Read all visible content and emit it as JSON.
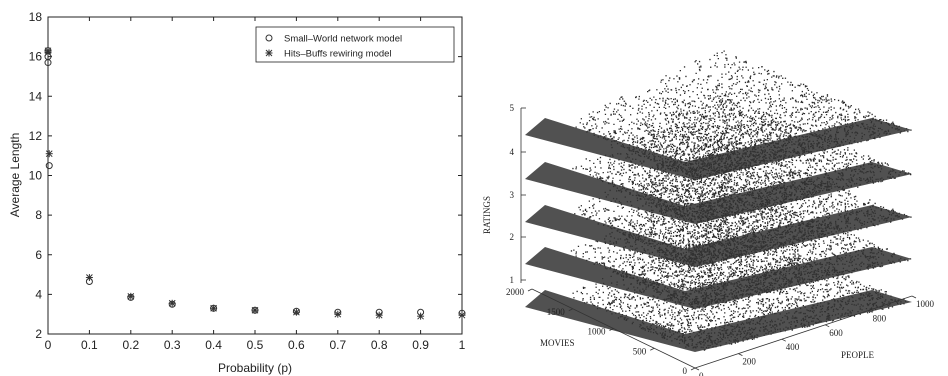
{
  "chart_data": [
    {
      "type": "scatter",
      "title": "",
      "xlabel": "Probability (p)",
      "ylabel": "Average Length",
      "xlim": [
        0,
        1
      ],
      "ylim": [
        2,
        18
      ],
      "xticks": [
        "0",
        "0.1",
        "0.2",
        "0.3",
        "0.4",
        "0.5",
        "0.6",
        "0.7",
        "0.8",
        "0.9",
        "1"
      ],
      "yticks": [
        "2",
        "4",
        "6",
        "8",
        "10",
        "12",
        "14",
        "16",
        "18"
      ],
      "legend_position": "top-right",
      "grid": false,
      "series": [
        {
          "name": "Small–World network model",
          "marker": "circle",
          "points": [
            [
              0,
              15.7
            ],
            [
              0,
              16.0
            ],
            [
              0,
              16.3
            ],
            [
              0.003,
              10.5
            ],
            [
              0.1,
              4.65
            ],
            [
              0.2,
              3.85
            ],
            [
              0.3,
              3.5
            ],
            [
              0.4,
              3.3
            ],
            [
              0.5,
              3.2
            ],
            [
              0.6,
              3.15
            ],
            [
              0.7,
              3.1
            ],
            [
              0.8,
              3.1
            ],
            [
              0.9,
              3.1
            ],
            [
              1.0,
              3.05
            ]
          ]
        },
        {
          "name": "Hits–Buffs rewiring model",
          "marker": "star",
          "points": [
            [
              0,
              16.2
            ],
            [
              0,
              16.3
            ],
            [
              0.003,
              11.1
            ],
            [
              0.1,
              4.85
            ],
            [
              0.2,
              3.9
            ],
            [
              0.3,
              3.55
            ],
            [
              0.4,
              3.3
            ],
            [
              0.5,
              3.2
            ],
            [
              0.6,
              3.1
            ],
            [
              0.7,
              3.0
            ],
            [
              0.8,
              2.95
            ],
            [
              0.9,
              2.9
            ],
            [
              1.0,
              2.95
            ]
          ]
        }
      ]
    },
    {
      "type": "scatter3d",
      "title": "",
      "xlabel": "PEOPLE",
      "ylabel": "MOVIES",
      "zlabel": "RATINGS",
      "xlim": [
        0,
        1000
      ],
      "ylim": [
        0,
        2000
      ],
      "zlim": [
        1,
        5
      ],
      "xticks": [
        "0",
        "200",
        "400",
        "600",
        "800",
        "1000"
      ],
      "yticks": [
        "0",
        "500",
        "1000",
        "1500",
        "2000"
      ],
      "zticks": [
        "1",
        "2",
        "3",
        "4",
        "5"
      ],
      "layers": [
        1,
        2,
        3,
        4,
        5
      ],
      "grid": false
    }
  ]
}
